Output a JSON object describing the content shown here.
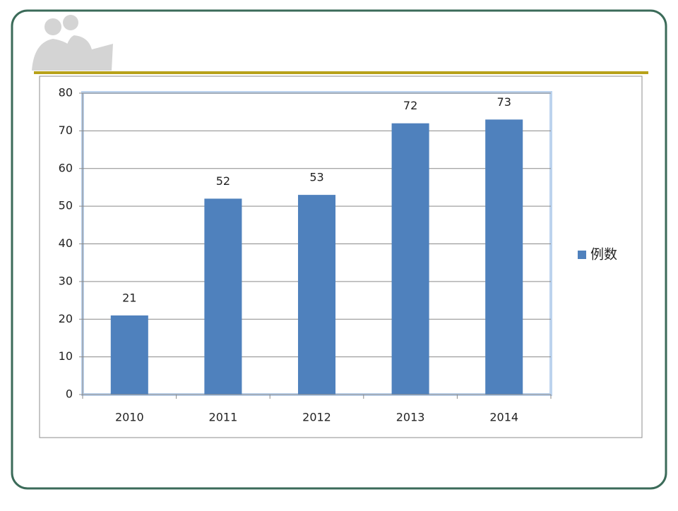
{
  "chart_data": {
    "type": "bar",
    "categories": [
      "2010",
      "2011",
      "2012",
      "2013",
      "2014"
    ],
    "series": [
      {
        "name": "例数",
        "color": "#4f81bd",
        "values": [
          21,
          52,
          53,
          72,
          73
        ]
      }
    ],
    "ylim": [
      0,
      80
    ],
    "yticks": [
      0,
      10,
      20,
      30,
      40,
      50,
      60,
      70,
      80
    ],
    "grid": true,
    "legend": "right"
  }
}
